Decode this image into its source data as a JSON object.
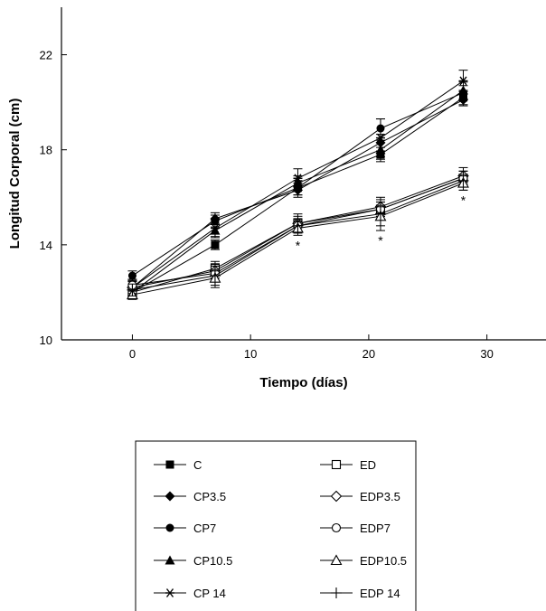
{
  "chart_data": {
    "type": "line",
    "title": "",
    "xlabel": "Tiempo (días)",
    "ylabel": "Longitud Corporal (cm)",
    "xlim": [
      -6,
      35
    ],
    "ylim": [
      10,
      24
    ],
    "xticks": [
      0,
      10,
      20,
      30
    ],
    "xtick_labels": [
      "0",
      "10",
      "20",
      "30"
    ],
    "yticks": [
      10,
      14,
      18,
      22
    ],
    "ytick_labels": [
      "10",
      "14",
      "18",
      "22"
    ],
    "grid": false,
    "legend_placement": "bottom",
    "x": [
      0,
      7,
      14,
      21,
      28
    ],
    "series": [
      {
        "name": "C",
        "marker": "filled-square",
        "values": [
          12.0,
          14.0,
          16.4,
          17.8,
          20.2
        ],
        "errors": [
          0.25,
          0.2,
          0.3,
          0.3,
          0.3
        ]
      },
      {
        "name": "CP3.5",
        "marker": "filled-diamond",
        "values": [
          12.2,
          15.1,
          16.3,
          18.3,
          20.1
        ],
        "errors": [
          0.25,
          0.25,
          0.3,
          0.35,
          0.25
        ]
      },
      {
        "name": "CP7",
        "marker": "filled-circle",
        "values": [
          12.7,
          15.0,
          16.4,
          18.9,
          20.4
        ],
        "errors": [
          0.2,
          0.25,
          0.3,
          0.4,
          0.3
        ]
      },
      {
        "name": "CP10.5",
        "marker": "filled-triangle",
        "values": [
          12.0,
          14.6,
          16.6,
          18.0,
          20.5
        ],
        "errors": [
          0.25,
          0.3,
          0.3,
          0.4,
          0.35
        ]
      },
      {
        "name": "CP 14",
        "marker": "asterisk",
        "values": [
          12.2,
          14.7,
          16.8,
          18.5,
          20.9
        ],
        "errors": [
          0.3,
          0.35,
          0.4,
          0.8,
          0.45
        ]
      },
      {
        "name": "ED",
        "marker": "open-square",
        "values": [
          12.0,
          13.0,
          14.9,
          15.5,
          16.8
        ],
        "errors": [
          0.25,
          0.3,
          0.3,
          0.3,
          0.3
        ]
      },
      {
        "name": "EDP3.5",
        "marker": "open-diamond",
        "values": [
          12.2,
          12.9,
          14.9,
          15.6,
          16.9
        ],
        "errors": [
          0.25,
          0.3,
          0.4,
          0.3,
          0.35
        ]
      },
      {
        "name": "EDP7",
        "marker": "open-circle",
        "values": [
          12.3,
          12.8,
          14.8,
          15.5,
          16.8
        ],
        "errors": [
          0.25,
          0.3,
          0.3,
          0.3,
          0.3
        ]
      },
      {
        "name": "EDP10.5",
        "marker": "open-triangle",
        "values": [
          11.9,
          12.6,
          14.7,
          15.2,
          16.6
        ],
        "errors": [
          0.2,
          0.3,
          0.3,
          0.4,
          0.3
        ]
      },
      {
        "name": "EDP 14",
        "marker": "plus",
        "values": [
          12.1,
          12.7,
          14.8,
          15.3,
          16.7
        ],
        "errors": [
          0.25,
          0.5,
          0.3,
          0.7,
          0.4
        ]
      }
    ],
    "annotations": [
      {
        "text": "*",
        "x": 14
      },
      {
        "text": "*",
        "x": 21
      },
      {
        "text": "*",
        "x": 28
      }
    ]
  }
}
